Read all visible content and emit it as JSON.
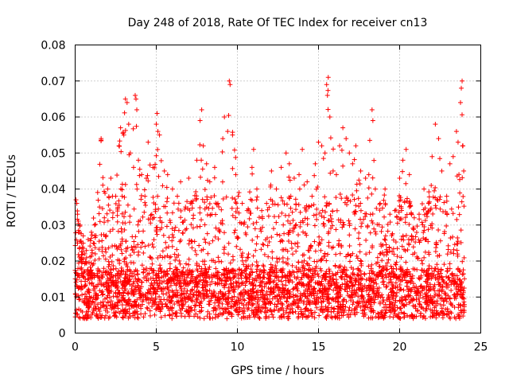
{
  "chart_data": {
    "type": "scatter",
    "title": "Day 248 of 2018, Rate Of TEC Index for receiver cn13",
    "xlabel": "GPS time / hours",
    "ylabel": "ROTI / TECUs",
    "xlim": [
      0,
      25
    ],
    "ylim": [
      0,
      0.08
    ],
    "x_ticks": [
      0,
      5,
      10,
      15,
      20,
      25
    ],
    "x_tick_labels": [
      "0",
      "5",
      "10",
      "15",
      "20",
      "25"
    ],
    "y_ticks": [
      0,
      0.01,
      0.02,
      0.03,
      0.04,
      0.05,
      0.06,
      0.07,
      0.08
    ],
    "y_tick_labels": [
      "0",
      "0.01",
      "0.02",
      "0.03",
      "0.04",
      "0.05",
      "0.06",
      "0.07",
      "0.08"
    ],
    "grid": true,
    "marker": "+",
    "color": "#ff0000",
    "series": [
      {
        "name": "ROTI",
        "points": [
          [
            0.05,
            0.037
          ],
          [
            0.1,
            0.036
          ],
          [
            0.15,
            0.033
          ],
          [
            0.2,
            0.028
          ],
          [
            0.3,
            0.03
          ],
          [
            0.4,
            0.025
          ],
          [
            0.5,
            0.027
          ],
          [
            0.6,
            0.022
          ],
          [
            0.8,
            0.026
          ],
          [
            1.0,
            0.028
          ],
          [
            1.2,
            0.03
          ],
          [
            1.5,
            0.035
          ],
          [
            1.6,
            0.054
          ],
          [
            1.8,
            0.032
          ],
          [
            2.0,
            0.04
          ],
          [
            2.2,
            0.043
          ],
          [
            2.5,
            0.038
          ],
          [
            2.7,
            0.052
          ],
          [
            2.8,
            0.057
          ],
          [
            3.0,
            0.055
          ],
          [
            3.1,
            0.065
          ],
          [
            3.2,
            0.064
          ],
          [
            3.3,
            0.058
          ],
          [
            3.4,
            0.05
          ],
          [
            3.6,
            0.046
          ],
          [
            3.7,
            0.066
          ],
          [
            3.75,
            0.065
          ],
          [
            3.8,
            0.062
          ],
          [
            3.9,
            0.048
          ],
          [
            4.1,
            0.044
          ],
          [
            4.3,
            0.038
          ],
          [
            4.5,
            0.053
          ],
          [
            4.8,
            0.046
          ],
          [
            5.0,
            0.058
          ],
          [
            5.05,
            0.061
          ],
          [
            5.1,
            0.056
          ],
          [
            5.2,
            0.055
          ],
          [
            5.5,
            0.045
          ],
          [
            5.7,
            0.044
          ],
          [
            6.0,
            0.04
          ],
          [
            6.3,
            0.038
          ],
          [
            6.5,
            0.042
          ],
          [
            6.8,
            0.035
          ],
          [
            7.0,
            0.043
          ],
          [
            7.2,
            0.036
          ],
          [
            7.5,
            0.048
          ],
          [
            7.7,
            0.059
          ],
          [
            7.8,
            0.062
          ],
          [
            7.9,
            0.052
          ],
          [
            8.1,
            0.047
          ],
          [
            8.3,
            0.042
          ],
          [
            8.6,
            0.046
          ],
          [
            8.8,
            0.036
          ],
          [
            9.1,
            0.054
          ],
          [
            9.2,
            0.06
          ],
          [
            9.4,
            0.056
          ],
          [
            9.5,
            0.07
          ],
          [
            9.55,
            0.069
          ],
          [
            9.7,
            0.055
          ],
          [
            9.9,
            0.044
          ],
          [
            10.1,
            0.039
          ],
          [
            10.3,
            0.036
          ],
          [
            10.6,
            0.034
          ],
          [
            10.9,
            0.046
          ],
          [
            11.0,
            0.051
          ],
          [
            11.2,
            0.04
          ],
          [
            11.5,
            0.034
          ],
          [
            11.8,
            0.036
          ],
          [
            12.1,
            0.045
          ],
          [
            12.4,
            0.04
          ],
          [
            12.7,
            0.046
          ],
          [
            13.0,
            0.05
          ],
          [
            13.2,
            0.047
          ],
          [
            13.5,
            0.043
          ],
          [
            13.8,
            0.044
          ],
          [
            14.0,
            0.051
          ],
          [
            14.3,
            0.042
          ],
          [
            14.6,
            0.038
          ],
          [
            14.8,
            0.047
          ],
          [
            15.0,
            0.053
          ],
          [
            15.2,
            0.052
          ],
          [
            15.4,
            0.05
          ],
          [
            15.5,
            0.069
          ],
          [
            15.6,
            0.071
          ],
          [
            15.55,
            0.066
          ],
          [
            15.7,
            0.06
          ],
          [
            15.9,
            0.045
          ],
          [
            16.1,
            0.044
          ],
          [
            16.3,
            0.052
          ],
          [
            16.5,
            0.057
          ],
          [
            16.7,
            0.054
          ],
          [
            16.9,
            0.05
          ],
          [
            17.1,
            0.047
          ],
          [
            17.3,
            0.052
          ],
          [
            17.6,
            0.045
          ],
          [
            17.9,
            0.043
          ],
          [
            18.1,
            0.044
          ],
          [
            18.3,
            0.062
          ],
          [
            18.35,
            0.059
          ],
          [
            18.5,
            0.04
          ],
          [
            18.8,
            0.036
          ],
          [
            19.1,
            0.04
          ],
          [
            19.4,
            0.033
          ],
          [
            19.7,
            0.034
          ],
          [
            20.0,
            0.043
          ],
          [
            20.2,
            0.048
          ],
          [
            20.4,
            0.051
          ],
          [
            20.6,
            0.044
          ],
          [
            20.9,
            0.032
          ],
          [
            21.2,
            0.033
          ],
          [
            21.5,
            0.04
          ],
          [
            21.8,
            0.036
          ],
          [
            22.0,
            0.049
          ],
          [
            22.2,
            0.058
          ],
          [
            22.4,
            0.054
          ],
          [
            22.6,
            0.045
          ],
          [
            22.9,
            0.038
          ],
          [
            23.1,
            0.047
          ],
          [
            23.3,
            0.049
          ],
          [
            23.5,
            0.056
          ],
          [
            23.6,
            0.053
          ],
          [
            23.75,
            0.064
          ],
          [
            23.8,
            0.068
          ],
          [
            23.85,
            0.07
          ],
          [
            23.9,
            0.052
          ],
          [
            23.95,
            0.045
          ]
        ]
      }
    ]
  }
}
